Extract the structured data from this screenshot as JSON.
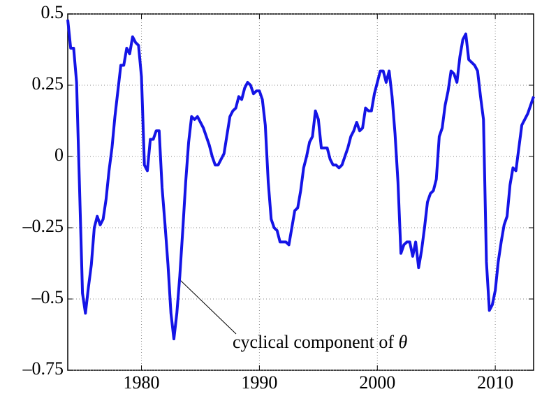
{
  "chart_data": {
    "type": "line",
    "annotation": {
      "text": "cyclical component of ",
      "symbol": "θ"
    },
    "x": [
      1973.75,
      1974,
      1974.25,
      1974.5,
      1975,
      1975.25,
      1975.5,
      1975.75,
      1976,
      1976.25,
      1976.5,
      1976.75,
      1977,
      1977.25,
      1977.5,
      1977.75,
      1978,
      1978.25,
      1978.5,
      1978.75,
      1979,
      1979.25,
      1979.5,
      1979.75,
      1980,
      1980.25,
      1980.5,
      1980.75,
      1981,
      1981.25,
      1981.5,
      1981.75,
      1982,
      1982.25,
      1982.5,
      1982.75,
      1983,
      1983.25,
      1983.5,
      1983.75,
      1984,
      1984.25,
      1984.5,
      1984.75,
      1985.25,
      1985.75,
      1986,
      1986.25,
      1986.5,
      1986.75,
      1987,
      1987.5,
      1987.75,
      1988,
      1988.25,
      1988.5,
      1988.75,
      1989,
      1989.25,
      1989.5,
      1989.75,
      1990,
      1990.25,
      1990.5,
      1990.75,
      1991,
      1991.25,
      1991.5,
      1991.75,
      1992,
      1992.25,
      1992.5,
      1992.75,
      1993,
      1993.25,
      1993.5,
      1993.75,
      1994,
      1994.25,
      1994.5,
      1994.75,
      1995,
      1995.25,
      1995.5,
      1995.75,
      1996,
      1996.25,
      1996.5,
      1996.75,
      1997,
      1997.25,
      1997.5,
      1997.75,
      1998,
      1998.25,
      1998.5,
      1998.75,
      1999,
      1999.25,
      1999.5,
      1999.75,
      2000,
      2000.25,
      2000.5,
      2000.75,
      2001,
      2001.25,
      2001.5,
      2001.75,
      2002,
      2002.25,
      2002.5,
      2002.75,
      2003,
      2003.25,
      2003.5,
      2003.75,
      2004,
      2004.25,
      2004.5,
      2004.75,
      2005,
      2005.25,
      2005.5,
      2005.75,
      2006,
      2006.25,
      2006.5,
      2006.75,
      2007,
      2007.25,
      2007.5,
      2007.75,
      2008,
      2008.25,
      2008.5,
      2008.75,
      2009,
      2009.25,
      2009.5,
      2009.75,
      2010,
      2010.25,
      2010.5,
      2010.75,
      2011,
      2011.25,
      2011.5,
      2011.75,
      2012,
      2012.25,
      2012.5,
      2012.75,
      2013,
      2013.25
    ],
    "series": [
      {
        "color": "#1414e6",
        "values": [
          0.48,
          0.38,
          0.38,
          0.26,
          -0.48,
          -0.55,
          -0.46,
          -0.38,
          -0.25,
          -0.21,
          -0.24,
          -0.22,
          -0.15,
          -0.05,
          0.03,
          0.14,
          0.23,
          0.32,
          0.32,
          0.38,
          0.36,
          0.42,
          0.4,
          0.39,
          0.28,
          -0.03,
          -0.05,
          0.06,
          0.06,
          0.09,
          0.09,
          -0.11,
          -0.24,
          -0.38,
          -0.55,
          -0.64,
          -0.55,
          -0.42,
          -0.26,
          -0.09,
          0.05,
          0.14,
          0.13,
          0.14,
          0.1,
          0.04,
          0.0,
          -0.03,
          -0.03,
          -0.01,
          0.01,
          0.14,
          0.16,
          0.17,
          0.21,
          0.2,
          0.24,
          0.26,
          0.25,
          0.22,
          0.23,
          0.23,
          0.2,
          0.11,
          -0.09,
          -0.22,
          -0.25,
          -0.26,
          -0.3,
          -0.3,
          -0.3,
          -0.31,
          -0.25,
          -0.19,
          -0.18,
          -0.12,
          -0.04,
          0.0,
          0.05,
          0.07,
          0.16,
          0.13,
          0.03,
          0.03,
          0.03,
          -0.01,
          -0.03,
          -0.03,
          -0.04,
          -0.03,
          0.0,
          0.03,
          0.07,
          0.09,
          0.12,
          0.09,
          0.1,
          0.17,
          0.16,
          0.16,
          0.22,
          0.26,
          0.3,
          0.3,
          0.26,
          0.3,
          0.21,
          0.08,
          -0.09,
          -0.34,
          -0.31,
          -0.3,
          -0.3,
          -0.35,
          -0.3,
          -0.39,
          -0.33,
          -0.25,
          -0.16,
          -0.13,
          -0.12,
          -0.08,
          0.07,
          0.1,
          0.18,
          0.23,
          0.3,
          0.29,
          0.26,
          0.35,
          0.41,
          0.43,
          0.34,
          0.33,
          0.32,
          0.3,
          0.21,
          0.13,
          -0.37,
          -0.54,
          -0.52,
          -0.47,
          -0.37,
          -0.3,
          -0.24,
          -0.21,
          -0.1,
          -0.04,
          -0.05,
          0.03,
          0.11,
          0.13,
          0.15,
          0.18,
          0.21
        ]
      }
    ],
    "xlim": [
      1973.75,
      2013.25
    ],
    "xticks": [
      1980,
      1990,
      2000,
      2010
    ],
    "ylim": [
      -0.75,
      0.5
    ],
    "yticks": [
      {
        "value": -0.75,
        "label": "–0.75"
      },
      {
        "value": -0.5,
        "label": "–0.5"
      },
      {
        "value": -0.25,
        "label": "–0.25"
      },
      0,
      0.25,
      0.5
    ],
    "grid": true
  }
}
